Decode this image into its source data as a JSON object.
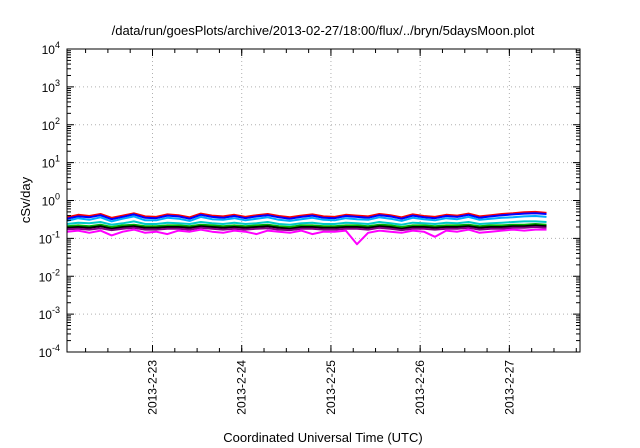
{
  "chart_data": {
    "type": "line",
    "title": "/data/run/goesPlots/archive/2013-02-27/18:00/flux/../bryn/5daysMoon.plot",
    "xlabel": "Coordinated Universal Time (UTC)",
    "ylabel": "cSv/day",
    "yscale": "log",
    "ylim": [
      0.0001,
      10000
    ],
    "y_ticks": [
      {
        "base": "10",
        "exp": "-4",
        "value": 0.0001
      },
      {
        "base": "10",
        "exp": "-3",
        "value": 0.001
      },
      {
        "base": "10",
        "exp": "-2",
        "value": 0.01
      },
      {
        "base": "10",
        "exp": "-1",
        "value": 0.1
      },
      {
        "base": "10",
        "exp": "0",
        "value": 1
      },
      {
        "base": "10",
        "exp": "1",
        "value": 10
      },
      {
        "base": "10",
        "exp": "2",
        "value": 100
      },
      {
        "base": "10",
        "exp": "3",
        "value": 1000
      },
      {
        "base": "10",
        "exp": "4",
        "value": 10000
      }
    ],
    "xlim": [
      "2013-02-22T01:00",
      "2013-02-27T19:00"
    ],
    "x_ticks": [
      {
        "label": "2013-2-23",
        "value": "2013-02-23T00:00"
      },
      {
        "label": "2013-2-24",
        "value": "2013-02-24T00:00"
      },
      {
        "label": "2013-2-25",
        "value": "2013-02-25T00:00"
      },
      {
        "label": "2013-2-26",
        "value": "2013-02-26T00:00"
      },
      {
        "label": "2013-2-27",
        "value": "2013-02-27T00:00"
      }
    ],
    "grid": true,
    "legend": "none",
    "series": [
      {
        "color": "#ff0000",
        "x_start": "2013-02-22T01:00",
        "step_hours": 3,
        "values": [
          0.36,
          0.42,
          0.39,
          0.44,
          0.35,
          0.4,
          0.46,
          0.38,
          0.37,
          0.43,
          0.41,
          0.36,
          0.45,
          0.4,
          0.38,
          0.42,
          0.37,
          0.41,
          0.44,
          0.39,
          0.36,
          0.4,
          0.43,
          0.38,
          0.37,
          0.42,
          0.4,
          0.38,
          0.44,
          0.41,
          0.36,
          0.43,
          0.39,
          0.37,
          0.42,
          0.4,
          0.45,
          0.38,
          0.41,
          0.44,
          0.46,
          0.49,
          0.5,
          0.47
        ]
      },
      {
        "color": "#0000ff",
        "x_start": "2013-02-22T01:00",
        "step_hours": 3,
        "values": [
          0.33,
          0.38,
          0.36,
          0.41,
          0.32,
          0.37,
          0.43,
          0.35,
          0.34,
          0.4,
          0.38,
          0.33,
          0.42,
          0.37,
          0.35,
          0.39,
          0.34,
          0.38,
          0.41,
          0.36,
          0.33,
          0.37,
          0.4,
          0.35,
          0.34,
          0.39,
          0.37,
          0.35,
          0.41,
          0.38,
          0.33,
          0.4,
          0.36,
          0.34,
          0.39,
          0.37,
          0.42,
          0.35,
          0.38,
          0.41,
          0.43,
          0.45,
          0.46,
          0.44
        ]
      },
      {
        "color": "#00aaff",
        "x_start": "2013-02-22T01:00",
        "step_hours": 3,
        "values": [
          0.29,
          0.34,
          0.31,
          0.36,
          0.28,
          0.33,
          0.38,
          0.3,
          0.3,
          0.35,
          0.33,
          0.29,
          0.37,
          0.32,
          0.31,
          0.34,
          0.3,
          0.33,
          0.36,
          0.31,
          0.29,
          0.32,
          0.35,
          0.31,
          0.3,
          0.34,
          0.32,
          0.31,
          0.36,
          0.33,
          0.29,
          0.35,
          0.32,
          0.3,
          0.34,
          0.32,
          0.37,
          0.31,
          0.33,
          0.35,
          0.36,
          0.38,
          0.39,
          0.37
        ]
      },
      {
        "color": "#00c8c8",
        "x_start": "2013-02-22T01:00",
        "step_hours": 3,
        "values": [
          0.24,
          0.26,
          0.25,
          0.27,
          0.23,
          0.25,
          0.28,
          0.24,
          0.24,
          0.26,
          0.25,
          0.24,
          0.27,
          0.25,
          0.24,
          0.26,
          0.24,
          0.25,
          0.27,
          0.24,
          0.23,
          0.25,
          0.26,
          0.24,
          0.24,
          0.26,
          0.25,
          0.24,
          0.27,
          0.25,
          0.23,
          0.26,
          0.25,
          0.24,
          0.26,
          0.25,
          0.27,
          0.24,
          0.25,
          0.26,
          0.27,
          0.28,
          0.28,
          0.27
        ]
      },
      {
        "color": "#00b000",
        "x_start": "2013-02-22T01:00",
        "step_hours": 3,
        "values": [
          0.21,
          0.22,
          0.21,
          0.23,
          0.2,
          0.22,
          0.23,
          0.21,
          0.21,
          0.22,
          0.22,
          0.21,
          0.23,
          0.22,
          0.21,
          0.22,
          0.21,
          0.22,
          0.23,
          0.21,
          0.2,
          0.22,
          0.22,
          0.21,
          0.21,
          0.22,
          0.22,
          0.21,
          0.23,
          0.22,
          0.2,
          0.22,
          0.22,
          0.21,
          0.22,
          0.22,
          0.23,
          0.21,
          0.22,
          0.22,
          0.23,
          0.23,
          0.24,
          0.23
        ]
      },
      {
        "color": "#000000",
        "x_start": "2013-02-22T01:00",
        "step_hours": 3,
        "values": [
          0.19,
          0.2,
          0.19,
          0.21,
          0.18,
          0.2,
          0.21,
          0.19,
          0.19,
          0.2,
          0.2,
          0.19,
          0.21,
          0.2,
          0.19,
          0.2,
          0.19,
          0.2,
          0.21,
          0.19,
          0.18,
          0.2,
          0.2,
          0.19,
          0.19,
          0.2,
          0.2,
          0.19,
          0.21,
          0.2,
          0.18,
          0.2,
          0.2,
          0.19,
          0.2,
          0.2,
          0.21,
          0.19,
          0.2,
          0.2,
          0.21,
          0.21,
          0.22,
          0.21
        ]
      },
      {
        "color": "#800080",
        "x_start": "2013-02-22T01:00",
        "step_hours": 3,
        "values": [
          0.175,
          0.18,
          0.17,
          0.185,
          0.165,
          0.18,
          0.19,
          0.17,
          0.17,
          0.18,
          0.18,
          0.17,
          0.19,
          0.18,
          0.17,
          0.18,
          0.17,
          0.18,
          0.185,
          0.17,
          0.165,
          0.18,
          0.18,
          0.17,
          0.17,
          0.18,
          0.18,
          0.17,
          0.19,
          0.18,
          0.165,
          0.18,
          0.18,
          0.17,
          0.18,
          0.18,
          0.19,
          0.17,
          0.18,
          0.18,
          0.19,
          0.19,
          0.2,
          0.19
        ]
      },
      {
        "color": "#ff00ff",
        "x_start": "2013-02-22T01:00",
        "step_hours": 3,
        "values": [
          0.15,
          0.16,
          0.14,
          0.16,
          0.12,
          0.15,
          0.17,
          0.14,
          0.15,
          0.13,
          0.16,
          0.15,
          0.17,
          0.15,
          0.14,
          0.16,
          0.15,
          0.13,
          0.16,
          0.15,
          0.14,
          0.16,
          0.13,
          0.15,
          0.15,
          0.16,
          0.07,
          0.14,
          0.16,
          0.15,
          0.14,
          0.16,
          0.15,
          0.11,
          0.16,
          0.15,
          0.17,
          0.14,
          0.15,
          0.16,
          0.17,
          0.16,
          0.17,
          0.17
        ]
      }
    ]
  }
}
